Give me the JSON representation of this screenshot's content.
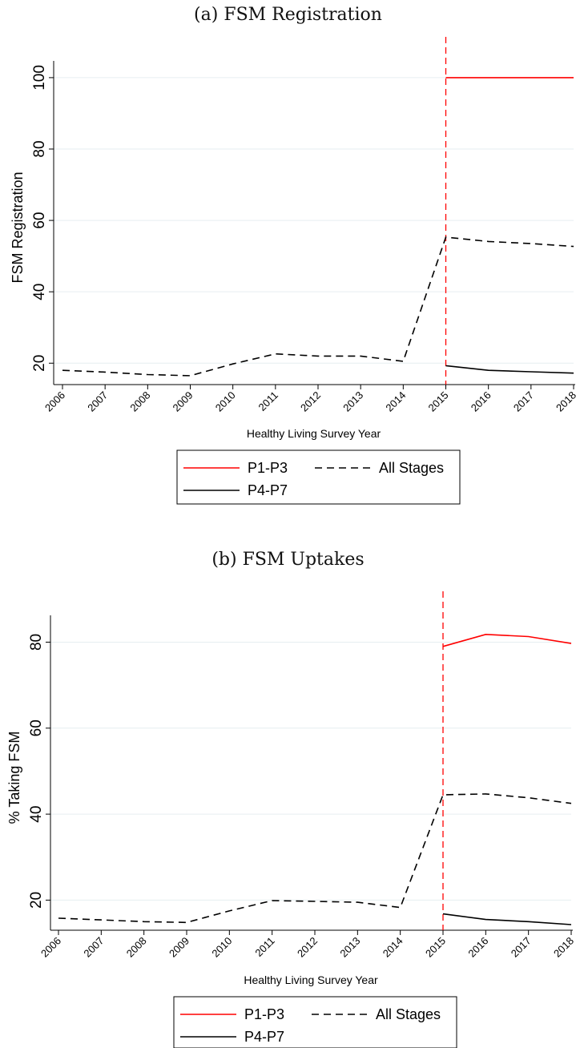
{
  "panels": [
    {
      "title": "(a) FSM Registration"
    },
    {
      "title": "(b) FSM Uptakes"
    }
  ],
  "chart_data": [
    {
      "type": "line",
      "title": "(a) FSM Registration",
      "xlabel": "Healthy Living Survey Year",
      "ylabel": "FSM Registration",
      "x": [
        "2006",
        "2007",
        "2008",
        "2009",
        "2010",
        "2011",
        "2012",
        "2013",
        "2014",
        "2015",
        "2016",
        "2017",
        "2018"
      ],
      "ylim": [
        14,
        102
      ],
      "yticks": [
        20,
        40,
        60,
        80,
        100
      ],
      "grid": true,
      "vline": {
        "x": "2015",
        "color": "#ff0000",
        "style": "dashed"
      },
      "legend": {
        "position": "bottom",
        "entries": [
          "P1-P3",
          "All Stages",
          "P4-P7"
        ]
      },
      "series": [
        {
          "name": "P1-P3",
          "color": "#ff0000",
          "style": "solid",
          "values": [
            null,
            null,
            null,
            null,
            null,
            null,
            null,
            null,
            null,
            100,
            100,
            100,
            100
          ]
        },
        {
          "name": "All Stages",
          "color": "#000000",
          "style": "dashed",
          "values": [
            18.0,
            17.5,
            16.8,
            16.5,
            19.8,
            22.6,
            22.0,
            22.0,
            20.5,
            55.3,
            54.1,
            53.5,
            52.7
          ]
        },
        {
          "name": "P4-P7",
          "color": "#000000",
          "style": "solid",
          "values": [
            null,
            null,
            null,
            null,
            null,
            null,
            null,
            null,
            null,
            19.3,
            18.0,
            17.6,
            17.2
          ]
        }
      ]
    },
    {
      "type": "line",
      "title": "(b) FSM Uptakes",
      "xlabel": "Healthy Living Survey Year",
      "ylabel": "% Taking FSM",
      "x": [
        "2006",
        "2007",
        "2008",
        "2009",
        "2010",
        "2011",
        "2012",
        "2013",
        "2014",
        "2015",
        "2016",
        "2017",
        "2018"
      ],
      "ylim": [
        13,
        84
      ],
      "yticks": [
        20,
        40,
        60,
        80
      ],
      "grid": true,
      "vline": {
        "x": "2015",
        "color": "#ff0000",
        "style": "dashed"
      },
      "legend": {
        "position": "bottom",
        "entries": [
          "P1-P3",
          "All Stages",
          "P4-P7"
        ]
      },
      "series": [
        {
          "name": "P1-P3",
          "color": "#ff0000",
          "style": "solid",
          "values": [
            null,
            null,
            null,
            null,
            null,
            null,
            null,
            null,
            null,
            79.0,
            81.8,
            81.3,
            79.7
          ]
        },
        {
          "name": "All Stages",
          "color": "#000000",
          "style": "dashed",
          "values": [
            15.8,
            15.4,
            15.0,
            14.8,
            17.5,
            19.9,
            19.7,
            19.5,
            18.3,
            44.5,
            44.7,
            43.8,
            42.5
          ]
        },
        {
          "name": "P4-P7",
          "color": "#000000",
          "style": "solid",
          "values": [
            null,
            null,
            null,
            null,
            null,
            null,
            null,
            null,
            null,
            16.8,
            15.5,
            15.0,
            14.3
          ]
        }
      ]
    }
  ]
}
